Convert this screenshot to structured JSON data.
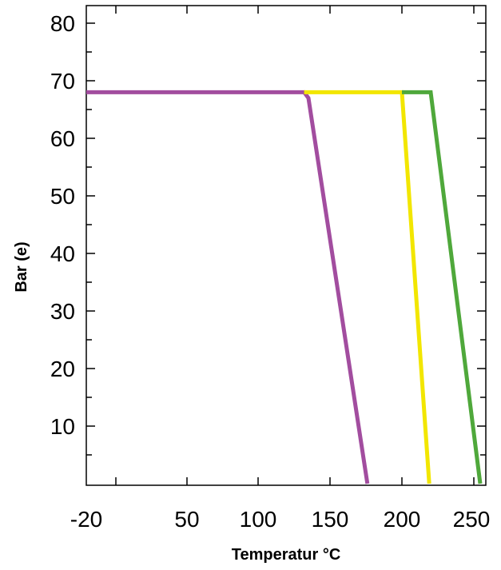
{
  "chart_data": {
    "type": "line",
    "title": "",
    "xlabel": "Temperatur °C",
    "ylabel": "Bar (e)",
    "x_tick_labels": [
      "-20",
      "50",
      "100",
      "150",
      "200",
      "250"
    ],
    "y_tick_labels": [
      "10",
      "20",
      "30",
      "40",
      "50",
      "60",
      "70",
      "80"
    ],
    "xlim": [
      -30,
      255
    ],
    "ylim": [
      0,
      83
    ],
    "grid": false,
    "legend": "none",
    "series": [
      {
        "color": "#a24d9f",
        "points": [
          [
            -20,
            68
          ],
          [
            132,
            68
          ],
          [
            135,
            67
          ],
          [
            176,
            0
          ]
        ]
      },
      {
        "color": "#f2e600",
        "points": [
          [
            132,
            68
          ],
          [
            200,
            68
          ],
          [
            219,
            0
          ]
        ]
      },
      {
        "color": "#4fa83b",
        "points": [
          [
            200,
            68
          ],
          [
            220,
            68
          ],
          [
            254,
            0
          ]
        ]
      }
    ]
  }
}
